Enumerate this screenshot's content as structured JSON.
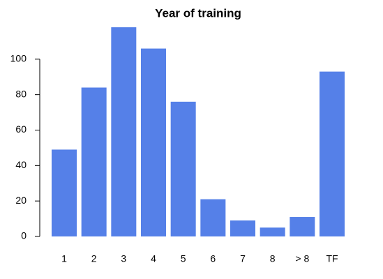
{
  "chart_data": {
    "type": "bar",
    "title": "Year of training",
    "categories": [
      "1",
      "2",
      "3",
      "4",
      "5",
      "6",
      "7",
      "8",
      "> 8",
      "TF"
    ],
    "values": [
      49,
      84,
      118,
      106,
      76,
      21,
      9,
      5,
      11,
      93
    ],
    "color": "#5580e8",
    "ylim": [
      0,
      120
    ],
    "yticks": [
      0,
      20,
      40,
      60,
      80,
      100
    ],
    "grid": false
  }
}
